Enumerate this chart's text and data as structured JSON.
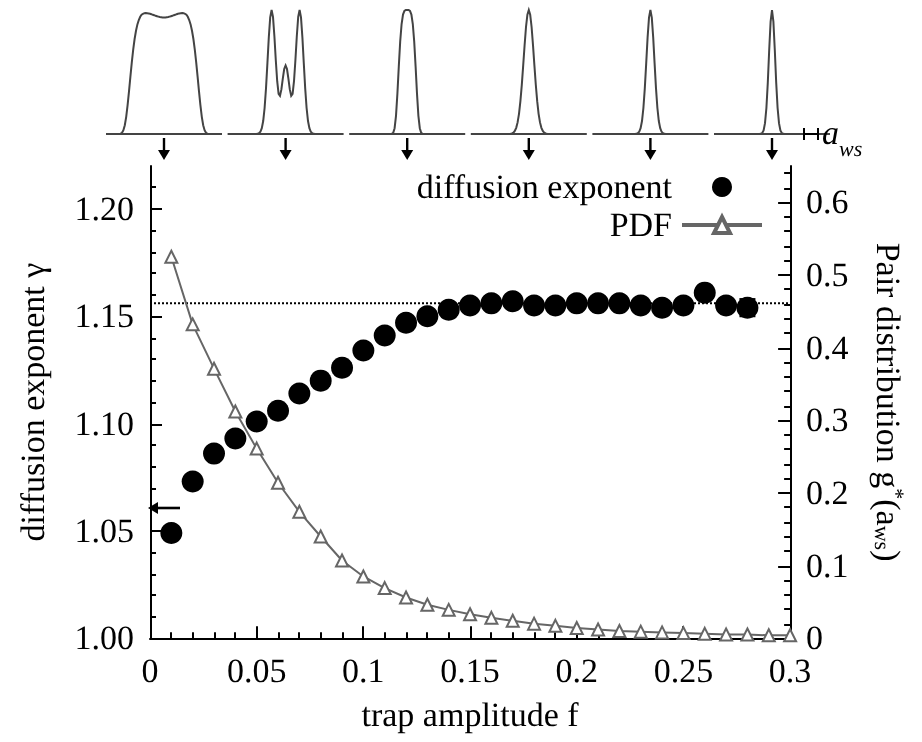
{
  "chart_data": {
    "type": "scatter",
    "xlabel": "trap amplitude f",
    "ylabel": "diffusion exponent γ",
    "y2label": "Pair distribution g$^{*}$(a$_{ws}$)",
    "xlim": [
      0,
      0.3
    ],
    "xticks": [
      0,
      0.05,
      0.1,
      0.15,
      0.2,
      0.25,
      0.3
    ],
    "ylim": [
      1,
      1.22
    ],
    "yticks": [
      {
        "value": 1,
        "label": "1.00"
      },
      1.05,
      {
        "value": 1.1,
        "label": "1.10"
      },
      1.15,
      {
        "value": 1.2,
        "label": "1.20"
      }
    ],
    "y2lim": [
      0,
      0.65
    ],
    "y2ticks": [
      0,
      0.1,
      0.2,
      0.3,
      0.4,
      0.5,
      0.6
    ],
    "grid": false,
    "legend": "top right",
    "ref_lines": [
      {
        "axis": "y",
        "value": 1.156,
        "color": "#000000",
        "line_style": "dotted"
      }
    ],
    "annotations": [
      "a$_{ws}$"
    ],
    "series": [
      {
        "name": "diffusion exponent",
        "marker": "circle",
        "color": "#000000",
        "x": [
          0.01,
          0.02,
          0.03,
          0.04,
          0.05,
          0.06,
          0.07,
          0.08,
          0.09,
          0.1,
          0.11,
          0.12,
          0.13,
          0.14,
          0.15,
          0.16,
          0.17,
          0.18,
          0.19,
          0.2,
          0.21,
          0.22,
          0.23,
          0.24,
          0.25,
          0.26,
          0.27,
          0.28
        ],
        "values": [
          1.049,
          1.073,
          1.086,
          1.093,
          1.101,
          1.106,
          1.114,
          1.12,
          1.126,
          1.134,
          1.141,
          1.147,
          1.15,
          1.153,
          1.155,
          1.156,
          1.157,
          1.155,
          1.155,
          1.156,
          1.156,
          1.156,
          1.155,
          1.154,
          1.155,
          1.161,
          1.155,
          1.154
        ],
        "errors": [
          null,
          null,
          null,
          null,
          null,
          null,
          null,
          null,
          null,
          null,
          null,
          null,
          null,
          null,
          null,
          null,
          null,
          null,
          null,
          null,
          null,
          null,
          null,
          null,
          null,
          null,
          null,
          0.004
        ]
      },
      {
        "name": "PDF",
        "type": "line",
        "axis": "y2",
        "marker": "triangle",
        "line_style": "solid",
        "color": "#666666",
        "x": [
          0.01,
          0.02,
          0.03,
          0.04,
          0.05,
          0.06,
          0.07,
          0.08,
          0.09,
          0.1,
          0.11,
          0.12,
          0.13,
          0.14,
          0.15,
          0.16,
          0.17,
          0.18,
          0.19,
          0.2,
          0.21,
          0.22,
          0.23,
          0.24,
          0.25,
          0.26,
          0.27,
          0.28,
          0.29,
          0.3
        ],
        "values": [
          0.525,
          0.432,
          0.371,
          0.312,
          0.261,
          0.214,
          0.174,
          0.14,
          0.107,
          0.085,
          0.069,
          0.056,
          0.046,
          0.039,
          0.033,
          0.028,
          0.024,
          0.02,
          0.017,
          0.014,
          0.012,
          0.01,
          0.009,
          0.008,
          0.007,
          0.006,
          0.005,
          0.005,
          0.004,
          0.004
        ]
      }
    ]
  }
}
